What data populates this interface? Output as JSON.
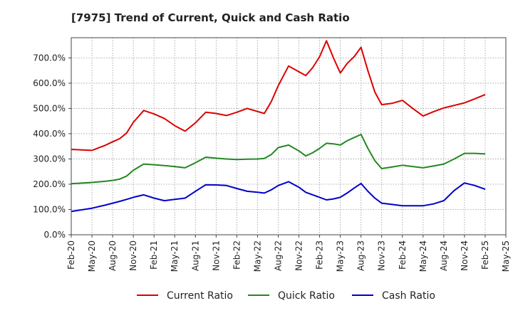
{
  "chart_data": {
    "type": "line",
    "title": "[7975]  Trend of Current, Quick and Cash Ratio",
    "xlabel": "",
    "ylabel": "",
    "ylim": [
      0,
      780
    ],
    "yticks": [
      0,
      100,
      200,
      300,
      400,
      500,
      600,
      700
    ],
    "ytick_labels": [
      "0.0%",
      "100.0%",
      "200.0%",
      "300.0%",
      "400.0%",
      "500.0%",
      "600.0%",
      "700.0%"
    ],
    "x_count": 22,
    "xtick_labels": [
      "Feb-20",
      "May-20",
      "Aug-20",
      "Nov-20",
      "Feb-21",
      "May-21",
      "Aug-21",
      "Nov-21",
      "Feb-22",
      "May-22",
      "Aug-22",
      "Nov-22",
      "Feb-23",
      "May-23",
      "Aug-23",
      "Nov-23",
      "Feb-24",
      "May-24",
      "Aug-24",
      "Nov-24",
      "Feb-25",
      "May-25"
    ],
    "grid": true,
    "legend_position": "bottom",
    "series": [
      {
        "name": "Current Ratio",
        "color": "#dd0000",
        "x": [
          0,
          1,
          1.67,
          2,
          2.33,
          2.67,
          3,
          3.5,
          4,
          4.5,
          5,
          5.5,
          6,
          6.5,
          7,
          7.5,
          8,
          8.5,
          9,
          9.33,
          9.67,
          10,
          10.5,
          11,
          11.33,
          11.67,
          12,
          12.33,
          12.67,
          13,
          13.33,
          13.67,
          14,
          14.33,
          14.67,
          15,
          15.5,
          16,
          16.5,
          17,
          17.5,
          18,
          18.5,
          19,
          19.5,
          20
        ],
        "values": [
          338,
          334,
          355,
          368,
          380,
          402,
          445,
          492,
          478,
          460,
          432,
          410,
          443,
          485,
          480,
          472,
          485,
          500,
          488,
          480,
          528,
          590,
          668,
          645,
          630,
          662,
          705,
          768,
          700,
          640,
          678,
          705,
          742,
          650,
          565,
          515,
          520,
          532,
          500,
          470,
          487,
          502,
          512,
          522,
          538,
          555
        ]
      },
      {
        "name": "Quick Ratio",
        "color": "#228822",
        "x": [
          0,
          1,
          1.67,
          2,
          2.33,
          2.67,
          3,
          3.5,
          4,
          4.5,
          5,
          5.5,
          6,
          6.5,
          7,
          7.5,
          8,
          8.5,
          9,
          9.33,
          9.67,
          10,
          10.5,
          11,
          11.33,
          11.67,
          12,
          12.33,
          12.67,
          13,
          13.33,
          13.67,
          14,
          14.33,
          14.67,
          15,
          15.5,
          16,
          16.5,
          17,
          17.5,
          18,
          18.5,
          19,
          19.5,
          20
        ],
        "values": [
          202,
          207,
          212,
          215,
          220,
          232,
          255,
          280,
          277,
          274,
          270,
          265,
          285,
          307,
          303,
          300,
          298,
          299,
          300,
          302,
          318,
          345,
          355,
          332,
          312,
          325,
          342,
          362,
          360,
          355,
          372,
          385,
          397,
          342,
          293,
          262,
          268,
          275,
          270,
          265,
          272,
          280,
          300,
          322,
          322,
          320
        ]
      },
      {
        "name": "Cash Ratio",
        "color": "#0000cc",
        "x": [
          0,
          1,
          1.67,
          2,
          2.33,
          2.67,
          3,
          3.5,
          4,
          4.5,
          5,
          5.5,
          6,
          6.5,
          7,
          7.5,
          8,
          8.5,
          9,
          9.33,
          9.67,
          10,
          10.5,
          11,
          11.33,
          11.67,
          12,
          12.33,
          12.67,
          13,
          13.33,
          13.67,
          14,
          14.33,
          14.67,
          15,
          15.5,
          16,
          16.5,
          17,
          17.5,
          18,
          18.5,
          19,
          19.5,
          20
        ],
        "values": [
          92,
          105,
          118,
          125,
          132,
          140,
          148,
          158,
          145,
          135,
          140,
          145,
          172,
          198,
          197,
          195,
          183,
          172,
          168,
          165,
          178,
          195,
          210,
          188,
          168,
          158,
          148,
          138,
          142,
          148,
          165,
          185,
          203,
          172,
          145,
          125,
          120,
          115,
          115,
          115,
          122,
          135,
          175,
          205,
          195,
          180
        ]
      }
    ]
  }
}
